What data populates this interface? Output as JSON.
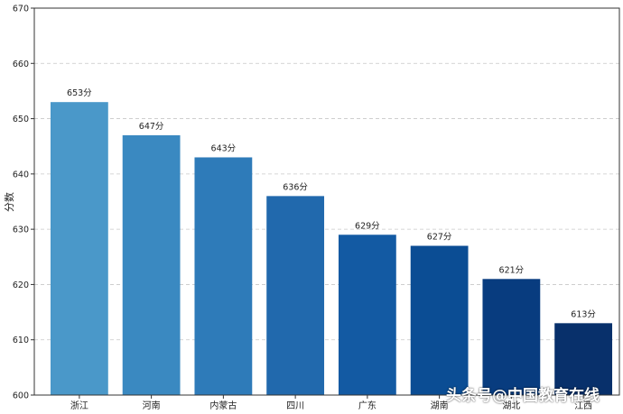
{
  "chart_data": {
    "type": "bar",
    "title": "",
    "xlabel": "",
    "ylabel": "分数",
    "ylim": [
      600,
      670
    ],
    "yticks": [
      600,
      610,
      620,
      630,
      640,
      650,
      660,
      670
    ],
    "grid": "y-dashed",
    "categories": [
      "浙江",
      "河南",
      "内蒙古",
      "四川",
      "广东",
      "湖南",
      "湖北",
      "江西"
    ],
    "values": [
      653,
      647,
      643,
      636,
      629,
      627,
      621,
      613
    ],
    "value_labels": [
      "653分",
      "647分",
      "643分",
      "636分",
      "629分",
      "627分",
      "621分",
      "613分"
    ],
    "colors": [
      "#4a98c9",
      "#3a89c1",
      "#2e7bb9",
      "#2169ad",
      "#135aa3",
      "#0b4d94",
      "#083c7f",
      "#08306b"
    ]
  },
  "watermark": "头条号@中国教育在线"
}
